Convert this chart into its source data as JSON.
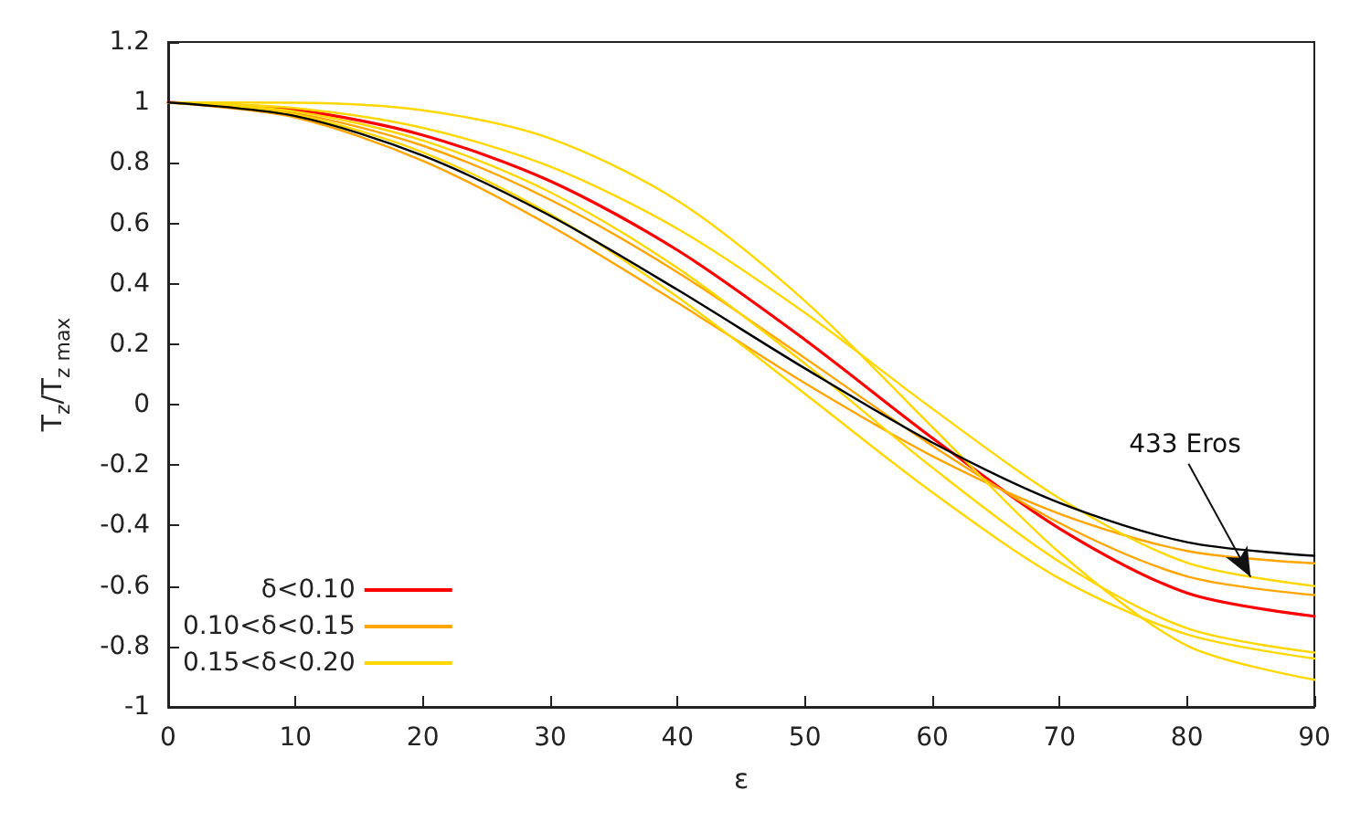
{
  "chart_data": {
    "type": "line",
    "xlabel": "ε",
    "ylabel": "T$_{z}$/T$_{z max}$",
    "x": [
      0,
      10,
      20,
      30,
      40,
      50,
      60,
      70,
      80,
      90
    ],
    "series": [
      {
        "name": "δ<0.10",
        "color": "#ff0000",
        "values": [
          1,
          0.975,
          0.892,
          0.74,
          0.511,
          0.215,
          -0.11,
          -0.41,
          -0.623,
          -0.7
        ]
      },
      {
        "name": "0.10<δ<0.15",
        "color": "#ffa500",
        "values": [
          1,
          0.964,
          0.857,
          0.678,
          0.438,
          0.154,
          -0.136,
          -0.392,
          -0.568,
          -0.63
        ]
      },
      {
        "color": "#ffa500",
        "values": [
          1,
          0.95,
          0.807,
          0.592,
          0.337,
          0.071,
          -0.17,
          -0.361,
          -0.484,
          -0.525
        ]
      },
      {
        "name": "0.15<δ<0.20",
        "color": "#ffd700",
        "values": [
          1,
          0.981,
          0.916,
          0.788,
          0.582,
          0.304,
          -0.013,
          -0.31,
          -0.523,
          -0.6
        ]
      },
      {
        "color": "#ffd700",
        "values": [
          1,
          0.999,
          0.974,
          0.881,
          0.675,
          0.343,
          -0.074,
          -0.49,
          -0.797,
          -0.91
        ]
      },
      {
        "color": "#ffd700",
        "values": [
          1,
          0.97,
          0.874,
          0.703,
          0.452,
          0.136,
          -0.208,
          -0.52,
          -0.74,
          -0.82
        ]
      },
      {
        "color": "#ffd700",
        "values": [
          1,
          0.959,
          0.835,
          0.63,
          0.356,
          0.036,
          -0.29,
          -0.575,
          -0.76,
          -0.84
        ]
      },
      {
        "color": "#000000",
        "values": [
          1,
          0.955,
          0.824,
          0.625,
          0.38,
          0.12,
          -0.125,
          -0.325,
          -0.455,
          -0.5
        ]
      }
    ],
    "annotations": [
      {
        "text": "433 Eros",
        "x": 85,
        "y": -0.57
      }
    ],
    "xlim": [
      0,
      90
    ],
    "xticks": [
      0,
      10,
      20,
      30,
      40,
      50,
      60,
      70,
      80,
      90
    ],
    "ylim": [
      -1,
      1.2
    ],
    "yticks": [
      -1,
      -0.8,
      -0.6,
      -0.4,
      -0.2,
      0,
      0.2,
      0.4,
      0.6,
      0.8,
      1,
      1.2
    ],
    "grid": false,
    "legend": "bottom left",
    "marker": "none",
    "line_style": "solid"
  }
}
